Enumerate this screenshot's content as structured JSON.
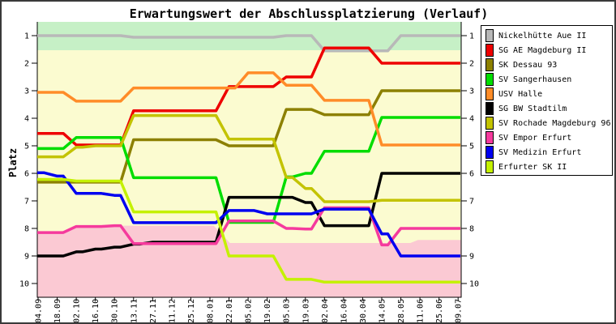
{
  "title": "Erwartungswert der Abschlussplatzierung (Verlauf)",
  "ylabel": "Platz",
  "chart_data": {
    "type": "line",
    "categories": [
      "04.09",
      "18.09",
      "02.10",
      "16.10",
      "30.10",
      "13.11",
      "27.11",
      "11.12",
      "25.12",
      "08.01",
      "22.01",
      "05.02",
      "19.02",
      "05.03",
      "19.03",
      "02.04",
      "16.04",
      "30.04",
      "14.05",
      "28.05",
      "11.06",
      "25.06",
      "09.07"
    ],
    "ylim": [
      0.5,
      10.5
    ],
    "y_ticks": [
      1,
      2,
      3,
      4,
      5,
      6,
      7,
      8,
      9,
      10
    ],
    "y_axis_inverted": true,
    "grid": false,
    "legend_position": "right",
    "series": [
      {
        "name": "Nickelhütte Aue II",
        "color": "#b8b8b8",
        "values": [
          1.0,
          1.0,
          1.0,
          1.0,
          1.0,
          1.06,
          1.06,
          1.06,
          1.06,
          1.06,
          1.06,
          1.06,
          1.06,
          1.0,
          1.0,
          1.55,
          1.55,
          1.55,
          1.55,
          1.0,
          1.0,
          1.0,
          1.0
        ]
      },
      {
        "name": "SG AE Magdeburg II",
        "color": "#ee0000",
        "values": [
          4.55,
          4.55,
          4.97,
          4.97,
          4.97,
          3.73,
          3.73,
          3.73,
          3.73,
          3.73,
          2.85,
          2.85,
          2.85,
          2.5,
          2.5,
          1.45,
          1.45,
          1.45,
          2.0,
          2.0,
          2.0,
          2.0,
          2.0
        ]
      },
      {
        "name": "SK Dessau 93",
        "color": "#8c8000",
        "values": [
          6.32,
          6.32,
          6.32,
          6.32,
          6.32,
          4.78,
          4.78,
          4.78,
          4.78,
          4.78,
          5.0,
          5.0,
          5.0,
          3.68,
          3.68,
          3.87,
          3.87,
          3.87,
          3.0,
          3.0,
          3.0,
          3.0,
          3.0
        ]
      },
      {
        "name": "SV Sangerhausen",
        "color": "#00dd00",
        "values": [
          5.1,
          5.1,
          4.7,
          4.7,
          4.7,
          6.16,
          6.16,
          6.16,
          6.16,
          6.16,
          7.78,
          7.78,
          7.78,
          6.13,
          6.0,
          5.2,
          5.2,
          5.2,
          3.97,
          3.97,
          3.97,
          3.97,
          3.97
        ]
      },
      {
        "name": "USV Halle",
        "color": "#ff8c28",
        "values": [
          3.06,
          3.06,
          3.38,
          3.38,
          3.38,
          2.9,
          2.9,
          2.9,
          2.9,
          2.9,
          2.9,
          2.35,
          2.35,
          2.8,
          2.8,
          3.35,
          3.35,
          3.35,
          4.97,
          4.97,
          4.97,
          4.97,
          4.97
        ]
      },
      {
        "name": "SG BW Stadtilm",
        "color": "#000000",
        "values": [
          9.0,
          9.0,
          8.85,
          8.75,
          8.68,
          8.57,
          8.5,
          8.5,
          8.5,
          8.5,
          6.87,
          6.87,
          6.87,
          6.87,
          7.06,
          7.9,
          7.9,
          7.9,
          6.0,
          6.0,
          6.0,
          6.0,
          6.0
        ]
      },
      {
        "name": "SV Rochade Magdeburg 96",
        "color": "#c3c300",
        "values": [
          5.4,
          5.4,
          5.05,
          5.0,
          5.0,
          3.9,
          3.9,
          3.9,
          3.9,
          3.9,
          4.76,
          4.76,
          4.76,
          6.15,
          6.55,
          7.03,
          7.03,
          7.03,
          6.98,
          6.98,
          6.98,
          6.98,
          6.98
        ]
      },
      {
        "name": "SV Empor Erfurt",
        "color": "#f53a9d",
        "values": [
          8.15,
          8.15,
          7.93,
          7.93,
          7.9,
          8.55,
          8.55,
          8.55,
          8.55,
          8.55,
          7.73,
          7.73,
          7.73,
          8.0,
          8.02,
          7.25,
          7.25,
          7.25,
          8.6,
          8.0,
          8.0,
          8.0,
          8.0
        ]
      },
      {
        "name": "SV Medizin Erfurt",
        "color": "#0000f0",
        "values": [
          5.98,
          6.1,
          6.73,
          6.73,
          6.8,
          7.79,
          7.79,
          7.79,
          7.79,
          7.79,
          7.35,
          7.35,
          7.47,
          7.47,
          7.47,
          7.3,
          7.3,
          7.3,
          8.2,
          9.0,
          9.0,
          9.0,
          9.0
        ]
      },
      {
        "name": "Erfurter SK II",
        "color": "#c4f100",
        "values": [
          6.22,
          6.22,
          6.28,
          6.28,
          6.28,
          7.4,
          7.4,
          7.4,
          7.4,
          7.4,
          9.0,
          9.0,
          9.0,
          9.85,
          9.85,
          9.95,
          9.95,
          9.95,
          9.95,
          9.95,
          9.95,
          9.95,
          9.95
        ]
      }
    ],
    "regions": {
      "promotion_zone": {
        "color": "#c6f0c6",
        "from_place": 0.5,
        "to_place": 1.53
      },
      "midfield_zone": {
        "color": "#fbfbd0"
      },
      "relegation_zone": {
        "color": "#fbc9d3",
        "boundary": [
          [
            1.0,
            8.16
          ],
          [
            2.1,
            8.16
          ],
          [
            2.9,
            7.9
          ],
          [
            10.2,
            7.9
          ],
          [
            11.05,
            8.53
          ],
          [
            20.5,
            8.53
          ],
          [
            20.9,
            8.42
          ],
          [
            23.0,
            8.42
          ]
        ]
      }
    }
  }
}
